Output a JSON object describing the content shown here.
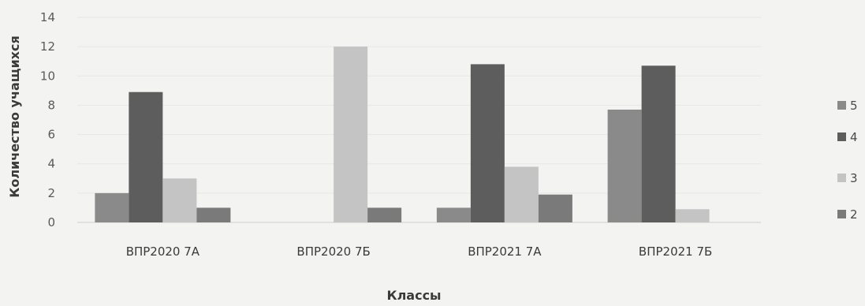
{
  "chart_data": {
    "type": "bar",
    "xlabel": "Классы",
    "ylabel": "Количество учащихся",
    "categories": [
      "ВПР2020 7А",
      "ВПР2020 7Б",
      "ВПР2021 7А",
      "ВПР2021 7Б"
    ],
    "series": [
      {
        "name": "5",
        "color": "#8a8a8a",
        "values": [
          2,
          0,
          1,
          7.7
        ]
      },
      {
        "name": "4",
        "color": "#5d5d5d",
        "values": [
          8.9,
          0,
          10.8,
          10.7
        ]
      },
      {
        "name": "3",
        "color": "#c4c4c4",
        "values": [
          3,
          12,
          3.8,
          0.9
        ]
      },
      {
        "name": "2",
        "color": "#7a7a7a",
        "values": [
          1,
          1,
          1.9,
          0
        ]
      }
    ],
    "ylim": [
      0,
      14
    ],
    "yticks": [
      0,
      2,
      4,
      6,
      8,
      10,
      12,
      14
    ],
    "grid": true,
    "legend_position": "right"
  }
}
